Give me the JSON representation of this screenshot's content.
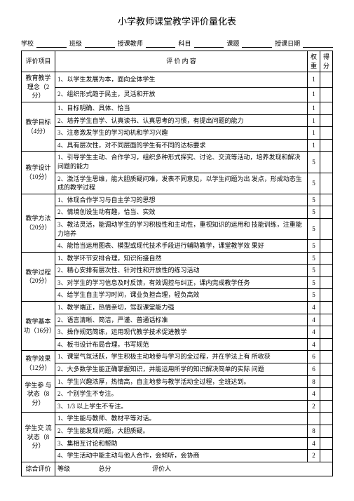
{
  "title": "小学教师课堂教学评价量化表",
  "header": {
    "school": "学校",
    "class": "班级",
    "teacher": "授课教师",
    "subject": "科目",
    "topic": "课题",
    "date": "授课日期"
  },
  "columns": {
    "category": "评价项目",
    "content": "评 价 内 容",
    "weight": "权重",
    "score": "得分"
  },
  "categories": [
    {
      "name": "教育教学 理念（2分）",
      "rows": [
        {
          "text": "1、以学生发展为本，面向全体学生",
          "weight": "1"
        },
        {
          "text": "2、组织形式趋于民主，灵活和开放",
          "weight": "1"
        }
      ]
    },
    {
      "name": "教学目标（4分）",
      "rows": [
        {
          "text": "1、目标明确、具体、恰当",
          "weight": "1"
        },
        {
          "text": "2、培养学生自学、认真读书、认真思考的习惯，有提出问题的能力",
          "weight": "1"
        },
        {
          "text": "3、注意激发学生的学习动机和学习兴趣",
          "weight": "1"
        },
        {
          "text": "4、具有层次性，对不同层面的学生有不同的达标要求",
          "weight": "1"
        }
      ]
    },
    {
      "name": "教学设计（10分）",
      "rows": [
        {
          "text": "1、引导学生主动、合作学习，组织多种形式探究、讨论、交流等活动，培养发现和解决问题的能力",
          "weight": "5"
        },
        {
          "text": "2、激活学生思维，能大胆质疑问难，发表不同意见，以学生问题为出 发点，形成动态生成的教学过程",
          "weight": "5"
        }
      ]
    },
    {
      "name": "教学方法（20分）",
      "rows": [
        {
          "text": "1、体现合作学习与自主学习的思想",
          "weight": "5"
        },
        {
          "text": "2、情境创设生动有趣，恰当、实效",
          "weight": "5"
        },
        {
          "text": "3、教法灵活，能调动学生的学习积极性和主动性，重视知识的运用和 技能训练，注重能力培养",
          "weight": "5"
        },
        {
          "text": "4、能恰当运用图表、模型或现代技术手段进行辅助教学，课堂教学效 果好",
          "weight": "5"
        }
      ]
    },
    {
      "name": "教学过程（20分）",
      "rows": [
        {
          "text": "1、教学环节安排合理，知识衔接自然",
          "weight": "5"
        },
        {
          "text": "2、精心安排有层次性、针对性和开放性的练习活动",
          "weight": "5"
        },
        {
          "text": "3、对学生的学习信息及时反馈，有效调控与纠正，课内完成教学任务",
          "weight": "5"
        },
        {
          "text": "4、给学生自主学习时间，课业负担合理，轻负高效",
          "weight": "5"
        }
      ]
    },
    {
      "name": "教学基本功（16分）",
      "rows": [
        {
          "text": "1、教学端正，热情亲切，驾驭课堂能力强",
          "weight": "4"
        },
        {
          "text": "2、语言清晰、简洁，严谨、普通话标准",
          "weight": "4"
        },
        {
          "text": "3、操作规范简练，运用现代教学技术促进教学",
          "weight": "4"
        },
        {
          "text": "4、板书设计布局合理，书写规范",
          "weight": "4"
        }
      ]
    },
    {
      "name": "教学效果（12分）",
      "rows": [
        {
          "text": "1、课堂气氛活跃，学生积极主动地参与学习的全过程，并在学法上有 所收获",
          "weight": "6"
        },
        {
          "text": "2、大多数学生能正确掌握知识，并能运用所学的知识解决简单的实际 问题",
          "weight": "6"
        }
      ]
    },
    {
      "name": "学生参 与状态（8分）",
      "rows": [
        {
          "text": "1、学生兴趣浓厚，热情高，自主地参与教学活动全过程，全班达到。",
          "weight": "8"
        },
        {
          "text": "2、个别学生不专注。",
          "weight": "4"
        },
        {
          "text": "3、1/3 以上学生不专注。",
          "weight": "2"
        }
      ]
    },
    {
      "name": "学生交 流状态（8分）",
      "rows": [
        {
          "text": "1、学生能与教师、教材平等对话。",
          "weight": ""
        },
        {
          "text": "2、学生能发现问题，大胆质疑。",
          "weight": "8"
        },
        {
          "text": "3、集相互讨论和帮助",
          "weight": "4"
        },
        {
          "text": "4、学生活动中能主动与他人合作，会倾听，会协商",
          "weight": "2"
        }
      ]
    }
  ],
  "footer": {
    "overall": "综合评价",
    "grade": "等级",
    "total": "总分",
    "evaluator": "评价人"
  }
}
